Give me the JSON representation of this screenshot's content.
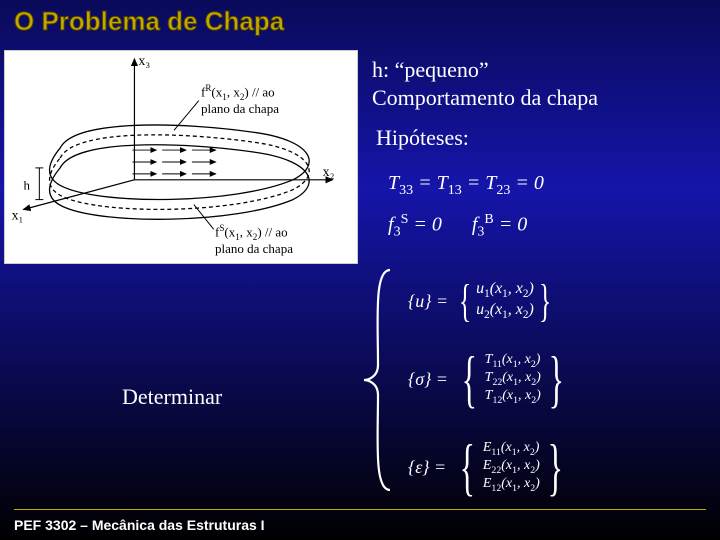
{
  "title": "O Problema de Chapa",
  "right": {
    "l1": "h: “pequeno”",
    "l2": "Comportamento da chapa",
    "hyp": "Hipóteses:"
  },
  "equations": {
    "e1_html": "T<sub>33</sub> = T<sub>13</sub> = T<sub>23</sub> = 0",
    "e2_html": "f<sub>3</sub><sup>S</sup> = 0   f<sub>3</sub><sup>B</sup> = 0"
  },
  "determinar": "Determinar",
  "det": {
    "u_label_html": "{u} =",
    "u_rows_html": [
      "u<sub>1</sub>(x<sub>1</sub>, x<sub>2</sub>)",
      "u<sub>2</sub>(x<sub>1</sub>, x<sub>2</sub>)"
    ],
    "s_label_html": "{σ} =",
    "s_rows_html": [
      "T<sub>11</sub>(x<sub>1</sub>, x<sub>2</sub>)",
      "T<sub>22</sub>(x<sub>1</sub>, x<sub>2</sub>)",
      "T<sub>12</sub>(x<sub>1</sub>, x<sub>2</sub>)"
    ],
    "e_label_html": "{ε} =",
    "e_rows_html": [
      "E<sub>11</sub>(x<sub>1</sub>, x<sub>2</sub>)",
      "E<sub>22</sub>(x<sub>1</sub>, x<sub>2</sub>)",
      "E<sub>12</sub>(x<sub>1</sub>, x<sub>2</sub>)"
    ]
  },
  "diagram": {
    "axes": {
      "x1": "x₁",
      "x2": "x₂",
      "x3": "x₃"
    },
    "fR_html": "f<sup>R</sup>(x<sub>1</sub>, x<sub>2</sub>) // ao<br>plano da chapa",
    "fS_html": "f<sup>S</sup>(x<sub>1</sub>, x<sub>2</sub>) // ao<br>plano da chapa",
    "h_label": "h",
    "colors": {
      "stroke": "#000000",
      "shape_fill": "none"
    }
  },
  "footer": "PEF 3302 – Mecânica das Estruturas I",
  "colors": {
    "title": "#c4a800",
    "text": "#ffffff",
    "bg_top": "#0a0a5a",
    "bg_mid": "#1515aa",
    "bg_bot": "#000000",
    "footer_line": "#c4a800"
  },
  "type": "lecture-slide"
}
